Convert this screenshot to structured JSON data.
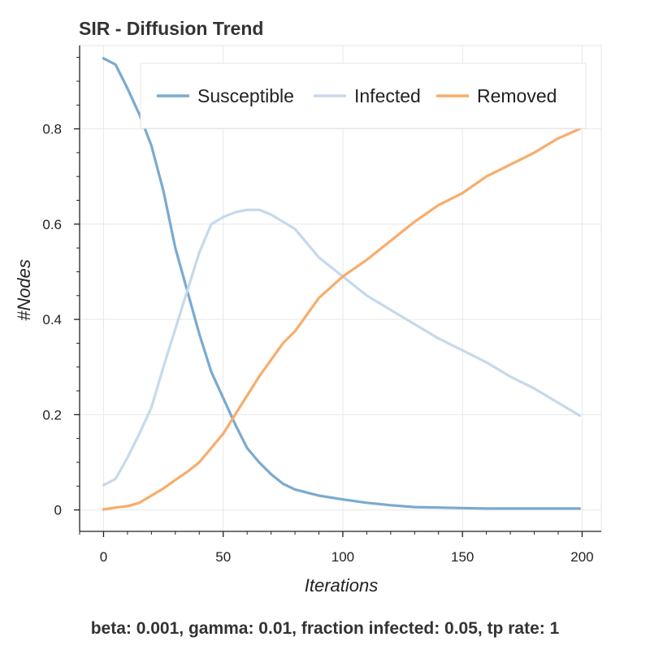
{
  "chart_data": {
    "type": "line",
    "title": "SIR - Diffusion Trend",
    "xlabel": "Iterations",
    "ylabel": "#Nodes",
    "xlim": [
      -10,
      208
    ],
    "ylim": [
      -0.045,
      0.975
    ],
    "xticks": [
      0,
      50,
      100,
      150,
      200
    ],
    "yticks": [
      0,
      0.2,
      0.4,
      0.6,
      0.8
    ],
    "xtick_labels": [
      "0",
      "50",
      "100",
      "150",
      "200"
    ],
    "ytick_labels": [
      "0",
      "0.2",
      "0.4",
      "0.6",
      "0.8"
    ],
    "grid": true,
    "legend_position": "top-right",
    "series": [
      {
        "name": "Susceptible",
        "color": "#7aaad0",
        "x": [
          0,
          5,
          10,
          15,
          20,
          25,
          30,
          35,
          40,
          45,
          50,
          55,
          60,
          65,
          70,
          75,
          80,
          90,
          100,
          110,
          120,
          130,
          140,
          150,
          160,
          180,
          199
        ],
        "y": [
          0.948,
          0.935,
          0.885,
          0.83,
          0.765,
          0.67,
          0.55,
          0.46,
          0.37,
          0.29,
          0.235,
          0.18,
          0.13,
          0.1,
          0.075,
          0.055,
          0.043,
          0.03,
          0.022,
          0.015,
          0.01,
          0.006,
          0.005,
          0.004,
          0.003,
          0.003,
          0.003
        ]
      },
      {
        "name": "Infected",
        "color": "#c6d9ec",
        "x": [
          0,
          5,
          10,
          15,
          20,
          25,
          30,
          35,
          40,
          45,
          50,
          55,
          60,
          65,
          70,
          75,
          80,
          90,
          100,
          110,
          120,
          130,
          140,
          150,
          160,
          170,
          180,
          190,
          199
        ],
        "y": [
          0.052,
          0.065,
          0.11,
          0.16,
          0.215,
          0.3,
          0.38,
          0.46,
          0.54,
          0.6,
          0.615,
          0.625,
          0.63,
          0.63,
          0.62,
          0.605,
          0.59,
          0.53,
          0.49,
          0.45,
          0.42,
          0.39,
          0.36,
          0.335,
          0.31,
          0.28,
          0.255,
          0.225,
          0.198
        ]
      },
      {
        "name": "Removed",
        "color": "#f7ad6b",
        "x": [
          0,
          5,
          10,
          15,
          20,
          25,
          30,
          35,
          40,
          45,
          50,
          55,
          60,
          65,
          70,
          75,
          80,
          90,
          100,
          110,
          120,
          130,
          140,
          150,
          160,
          170,
          180,
          190,
          199
        ],
        "y": [
          0.001,
          0.005,
          0.008,
          0.015,
          0.03,
          0.045,
          0.063,
          0.08,
          0.1,
          0.13,
          0.16,
          0.2,
          0.24,
          0.28,
          0.315,
          0.35,
          0.375,
          0.445,
          0.49,
          0.525,
          0.565,
          0.605,
          0.64,
          0.665,
          0.7,
          0.725,
          0.75,
          0.78,
          0.8
        ]
      }
    ]
  },
  "caption": "beta: 0.001, gamma: 0.01, fraction infected: 0.05, tp rate: 1"
}
